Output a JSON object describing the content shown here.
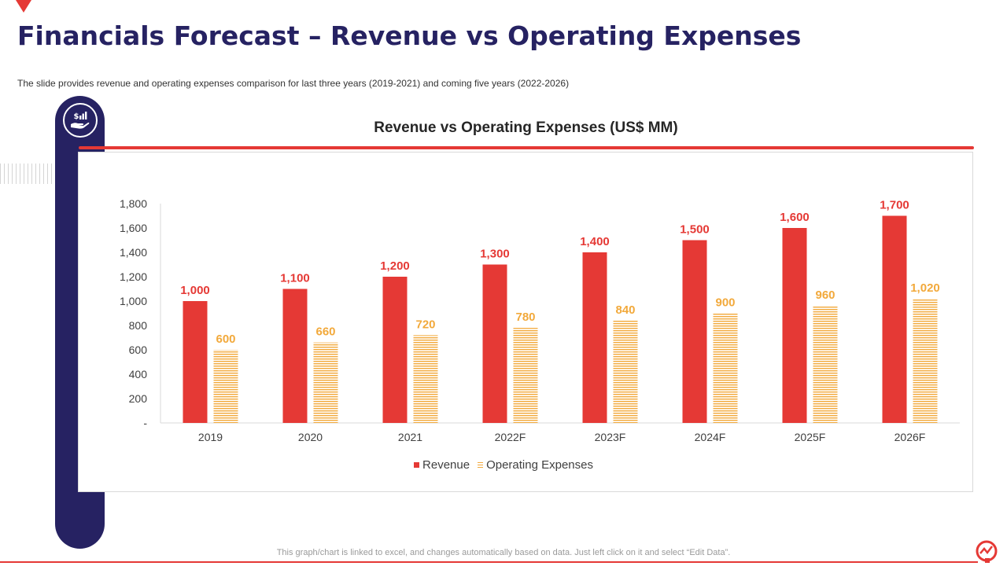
{
  "slide": {
    "title": "Financials Forecast – Revenue vs Operating Expenses",
    "subtitle": "The slide provides  revenue  and operating expenses comparison for last three years (2019-2021)  and coming five  years (2022-2026)",
    "footnote": "This graph/chart is linked to excel,  and changes automatically based on data. Just left click on it and select “Edit Data”.",
    "badge_icon": "hand-dollar-growth-icon",
    "logo_icon": "brand-logo-icon"
  },
  "colors": {
    "navy": "#262262",
    "revenue": "#e53935",
    "opex": "#f2a93b"
  },
  "chart_data": {
    "type": "bar",
    "title": "Revenue vs Operating Expenses (US$ MM)",
    "categories": [
      "2019",
      "2020",
      "2021",
      "2022F",
      "2023F",
      "2024F",
      "2025F",
      "2026F"
    ],
    "series": [
      {
        "name": "Revenue",
        "values": [
          1000,
          1100,
          1200,
          1300,
          1400,
          1500,
          1600,
          1700
        ],
        "labels": [
          "1,000",
          "1,100",
          "1,200",
          "1,300",
          "1,400",
          "1,500",
          "1,600",
          "1,700"
        ]
      },
      {
        "name": "Operating Expenses",
        "values": [
          600,
          660,
          720,
          780,
          840,
          900,
          960,
          1020
        ],
        "labels": [
          "600",
          "660",
          "720",
          "780",
          "840",
          "900",
          "960",
          "1,020"
        ]
      }
    ],
    "ylim": [
      0,
      1800
    ],
    "yticks": [
      0,
      200,
      400,
      600,
      800,
      1000,
      1200,
      1400,
      1600,
      1800
    ],
    "ytick_labels": [
      "-",
      "200",
      "400",
      "600",
      "800",
      "1,000",
      "1,200",
      "1,400",
      "1,600",
      "1,800"
    ],
    "xlabel": "",
    "ylabel": "",
    "grid": false,
    "legend_position": "bottom-center"
  }
}
